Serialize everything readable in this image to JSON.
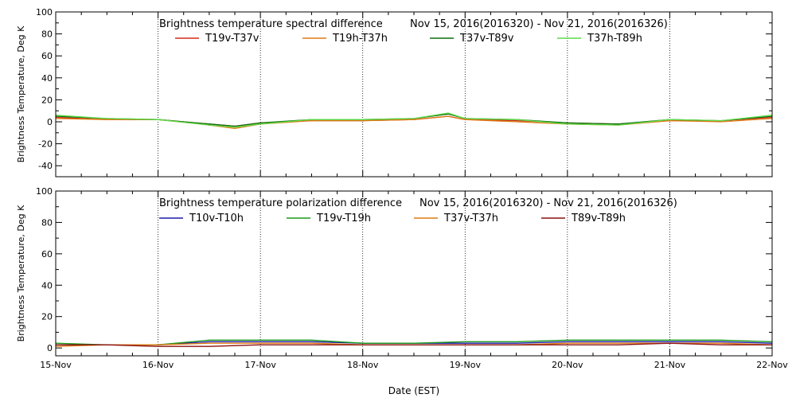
{
  "chart_data": [
    {
      "type": "line",
      "title": "Brightness temperature spectral difference",
      "date_range": "Nov 15, 2016(2016320) - Nov 21, 2016(2016326)",
      "ylabel": "Brightness Temperature, Deg K",
      "xlabel": "",
      "ylim": [
        -50,
        100
      ],
      "yticks": [
        "-40",
        "-20",
        "0",
        "20",
        "40",
        "60",
        "80",
        "100"
      ],
      "xlim": [
        "2016-11-15",
        "2016-11-22"
      ],
      "grid": "vertical dotted lines at day boundaries",
      "legend_position": "top",
      "series": [
        {
          "name": "T19v-T37v",
          "color": "#d42a1a",
          "x": [
            "Nov 15 00h",
            "Nov 15 12h",
            "Nov 16 00h",
            "Nov 16 12h",
            "Nov 16 18h",
            "Nov 17 00h",
            "Nov 17 12h",
            "Nov 18 00h",
            "Nov 18 12h",
            "Nov 18 20h",
            "Nov 19 00h",
            "Nov 19 12h",
            "Nov 20 00h",
            "Nov 20 12h",
            "Nov 21 00h",
            "Nov 21 12h",
            "Nov 22 00h"
          ],
          "values": [
            4,
            2,
            2,
            -2,
            -4,
            -1,
            1,
            1,
            2,
            5,
            2,
            1,
            -1,
            -2,
            1,
            1,
            4
          ]
        },
        {
          "name": "T19h-T37h",
          "color": "#e07a12",
          "x": [
            "Nov 15 00h",
            "Nov 15 12h",
            "Nov 16 00h",
            "Nov 16 12h",
            "Nov 16 18h",
            "Nov 17 00h",
            "Nov 17 12h",
            "Nov 18 00h",
            "Nov 18 12h",
            "Nov 18 20h",
            "Nov 19 00h",
            "Nov 19 12h",
            "Nov 20 00h",
            "Nov 20 12h",
            "Nov 21 00h",
            "Nov 21 12h",
            "Nov 22 00h"
          ],
          "values": [
            3,
            2,
            2,
            -3,
            -6,
            -2,
            1,
            1,
            2,
            5,
            2,
            0,
            -2,
            -3,
            1,
            0,
            3
          ]
        },
        {
          "name": "T37v-T89v",
          "color": "#0a6e0a",
          "x": [
            "Nov 15 00h",
            "Nov 15 12h",
            "Nov 16 00h",
            "Nov 16 12h",
            "Nov 16 18h",
            "Nov 17 00h",
            "Nov 17 12h",
            "Nov 18 00h",
            "Nov 18 12h",
            "Nov 18 20h",
            "Nov 19 00h",
            "Nov 19 12h",
            "Nov 20 00h",
            "Nov 20 12h",
            "Nov 21 00h",
            "Nov 21 12h",
            "Nov 22 00h"
          ],
          "values": [
            5,
            3,
            2,
            -2,
            -4,
            -1,
            2,
            2,
            3,
            7,
            3,
            2,
            -1,
            -2,
            2,
            1,
            5
          ]
        },
        {
          "name": "T37h-T89h",
          "color": "#5fdc4a",
          "x": [
            "Nov 15 00h",
            "Nov 15 12h",
            "Nov 16 00h",
            "Nov 16 12h",
            "Nov 16 18h",
            "Nov 17 00h",
            "Nov 17 12h",
            "Nov 18 00h",
            "Nov 18 12h",
            "Nov 18 20h",
            "Nov 19 00h",
            "Nov 19 12h",
            "Nov 20 00h",
            "Nov 20 12h",
            "Nov 21 00h",
            "Nov 21 12h",
            "Nov 22 00h"
          ],
          "values": [
            6,
            3,
            2,
            -3,
            -5,
            -2,
            2,
            2,
            3,
            8,
            3,
            2,
            -2,
            -3,
            2,
            1,
            6
          ]
        }
      ]
    },
    {
      "type": "line",
      "title": "Brightness temperature polarization difference",
      "date_range": "Nov 15, 2016(2016320) - Nov 21, 2016(2016326)",
      "ylabel": "Brightness Temperature, Deg K",
      "xlabel": "Date (EST)",
      "ylim": [
        -5,
        100
      ],
      "yticks": [
        "0",
        "20",
        "40",
        "60",
        "80",
        "100"
      ],
      "xlim": [
        "2016-11-15",
        "2016-11-22"
      ],
      "xticks": [
        "15-Nov",
        "16-Nov",
        "17-Nov",
        "18-Nov",
        "19-Nov",
        "20-Nov",
        "21-Nov",
        "22-Nov"
      ],
      "grid": "vertical dotted lines at day boundaries",
      "legend_position": "top",
      "series": [
        {
          "name": "T10v-T10h",
          "color": "#1a1aa8",
          "x": [
            "Nov 15 00h",
            "Nov 15 12h",
            "Nov 16 00h",
            "Nov 16 12h",
            "Nov 17 00h",
            "Nov 17 12h",
            "Nov 18 00h",
            "Nov 18 12h",
            "Nov 19 00h",
            "Nov 19 12h",
            "Nov 20 00h",
            "Nov 20 12h",
            "Nov 21 00h",
            "Nov 21 12h",
            "Nov 22 00h"
          ],
          "values": [
            2,
            2,
            2,
            4,
            4,
            4,
            3,
            3,
            3,
            3,
            4,
            4,
            4,
            4,
            3
          ]
        },
        {
          "name": "T19v-T19h",
          "color": "#1a9a1a",
          "x": [
            "Nov 15 00h",
            "Nov 15 12h",
            "Nov 16 00h",
            "Nov 16 12h",
            "Nov 17 00h",
            "Nov 17 12h",
            "Nov 18 00h",
            "Nov 18 12h",
            "Nov 19 00h",
            "Nov 19 12h",
            "Nov 20 00h",
            "Nov 20 12h",
            "Nov 21 00h",
            "Nov 21 12h",
            "Nov 22 00h"
          ],
          "values": [
            3,
            2,
            2,
            5,
            5,
            5,
            3,
            3,
            4,
            4,
            5,
            5,
            5,
            5,
            4
          ]
        },
        {
          "name": "T37v-T37h",
          "color": "#e07a12",
          "x": [
            "Nov 15 00h",
            "Nov 15 12h",
            "Nov 16 00h",
            "Nov 16 12h",
            "Nov 17 00h",
            "Nov 17 12h",
            "Nov 18 00h",
            "Nov 18 12h",
            "Nov 19 00h",
            "Nov 19 12h",
            "Nov 20 00h",
            "Nov 20 12h",
            "Nov 21 00h",
            "Nov 21 12h",
            "Nov 22 00h"
          ],
          "values": [
            1,
            2,
            2,
            3,
            3,
            3,
            2,
            2,
            2,
            2,
            3,
            3,
            3,
            3,
            2
          ]
        },
        {
          "name": "T89v-T89h",
          "color": "#8a1010",
          "x": [
            "Nov 15 00h",
            "Nov 15 12h",
            "Nov 16 00h",
            "Nov 16 12h",
            "Nov 17 00h",
            "Nov 17 12h",
            "Nov 18 00h",
            "Nov 18 12h",
            "Nov 19 00h",
            "Nov 19 12h",
            "Nov 20 00h",
            "Nov 20 12h",
            "Nov 21 00h",
            "Nov 21 12h",
            "Nov 22 00h"
          ],
          "values": [
            2,
            2,
            1,
            1,
            2,
            2,
            2,
            2,
            2,
            2,
            2,
            2,
            3,
            2,
            2
          ]
        }
      ]
    }
  ]
}
